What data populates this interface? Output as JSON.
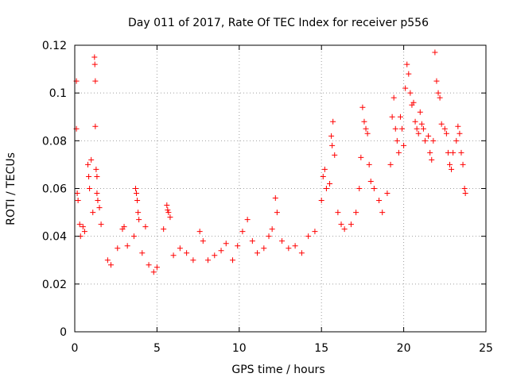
{
  "chart_data": {
    "type": "scatter",
    "title": "Day 011 of 2017, Rate Of TEC Index for receiver p556",
    "xlabel": "GPS time / hours",
    "ylabel": "ROTI / TECUs",
    "xlim": [
      0,
      25
    ],
    "ylim": [
      0,
      0.12
    ],
    "x_ticks": [
      0,
      5,
      10,
      15,
      20,
      25
    ],
    "y_ticks": [
      0,
      0.02,
      0.04,
      0.06,
      0.08,
      0.1,
      0.12
    ],
    "x_tick_labels": [
      "0",
      "5",
      "10",
      "15",
      "20",
      "25"
    ],
    "y_tick_labels": [
      "0",
      "0.02",
      "0.04",
      "0.06",
      "0.08",
      "0.1",
      "0.12"
    ],
    "grid": true,
    "marker": "plus",
    "color": "#ff0000",
    "series": [
      {
        "points": [
          [
            0.1,
            0.105
          ],
          [
            0.1,
            0.085
          ],
          [
            0.15,
            0.058
          ],
          [
            0.2,
            0.055
          ],
          [
            0.3,
            0.045
          ],
          [
            0.35,
            0.04
          ],
          [
            0.5,
            0.044
          ],
          [
            0.6,
            0.042
          ],
          [
            0.8,
            0.07
          ],
          [
            0.85,
            0.065
          ],
          [
            0.9,
            0.06
          ],
          [
            1.0,
            0.072
          ],
          [
            1.1,
            0.05
          ],
          [
            1.2,
            0.115
          ],
          [
            1.22,
            0.112
          ],
          [
            1.25,
            0.105
          ],
          [
            1.25,
            0.086
          ],
          [
            1.3,
            0.068
          ],
          [
            1.35,
            0.065
          ],
          [
            1.35,
            0.058
          ],
          [
            1.4,
            0.055
          ],
          [
            1.5,
            0.052
          ],
          [
            1.6,
            0.045
          ],
          [
            2.0,
            0.03
          ],
          [
            2.2,
            0.028
          ],
          [
            2.6,
            0.035
          ],
          [
            2.9,
            0.043
          ],
          [
            3.0,
            0.044
          ],
          [
            3.2,
            0.036
          ],
          [
            3.6,
            0.04
          ],
          [
            3.7,
            0.06
          ],
          [
            3.75,
            0.058
          ],
          [
            3.8,
            0.055
          ],
          [
            3.85,
            0.05
          ],
          [
            3.9,
            0.047
          ],
          [
            4.1,
            0.033
          ],
          [
            4.3,
            0.044
          ],
          [
            4.5,
            0.028
          ],
          [
            4.8,
            0.025
          ],
          [
            5.0,
            0.027
          ],
          [
            5.4,
            0.043
          ],
          [
            5.6,
            0.053
          ],
          [
            5.65,
            0.051
          ],
          [
            5.7,
            0.05
          ],
          [
            5.8,
            0.048
          ],
          [
            6.0,
            0.032
          ],
          [
            6.4,
            0.035
          ],
          [
            6.8,
            0.033
          ],
          [
            7.2,
            0.03
          ],
          [
            7.6,
            0.042
          ],
          [
            7.8,
            0.038
          ],
          [
            8.1,
            0.03
          ],
          [
            8.5,
            0.032
          ],
          [
            8.9,
            0.034
          ],
          [
            9.2,
            0.037
          ],
          [
            9.6,
            0.03
          ],
          [
            9.9,
            0.036
          ],
          [
            10.2,
            0.042
          ],
          [
            10.5,
            0.047
          ],
          [
            10.8,
            0.038
          ],
          [
            11.1,
            0.033
          ],
          [
            11.5,
            0.035
          ],
          [
            11.8,
            0.04
          ],
          [
            12.0,
            0.043
          ],
          [
            12.2,
            0.056
          ],
          [
            12.3,
            0.05
          ],
          [
            12.6,
            0.038
          ],
          [
            13.0,
            0.035
          ],
          [
            13.4,
            0.036
          ],
          [
            13.8,
            0.033
          ],
          [
            14.2,
            0.04
          ],
          [
            14.6,
            0.042
          ],
          [
            15.0,
            0.055
          ],
          [
            15.1,
            0.065
          ],
          [
            15.2,
            0.068
          ],
          [
            15.3,
            0.06
          ],
          [
            15.5,
            0.062
          ],
          [
            15.6,
            0.082
          ],
          [
            15.65,
            0.078
          ],
          [
            15.7,
            0.088
          ],
          [
            15.8,
            0.074
          ],
          [
            16.0,
            0.05
          ],
          [
            16.2,
            0.045
          ],
          [
            16.4,
            0.043
          ],
          [
            16.8,
            0.045
          ],
          [
            17.1,
            0.05
          ],
          [
            17.3,
            0.06
          ],
          [
            17.4,
            0.073
          ],
          [
            17.5,
            0.094
          ],
          [
            17.6,
            0.088
          ],
          [
            17.7,
            0.085
          ],
          [
            17.8,
            0.083
          ],
          [
            17.9,
            0.07
          ],
          [
            18.0,
            0.063
          ],
          [
            18.2,
            0.06
          ],
          [
            18.5,
            0.055
          ],
          [
            18.7,
            0.05
          ],
          [
            19.0,
            0.058
          ],
          [
            19.2,
            0.07
          ],
          [
            19.3,
            0.09
          ],
          [
            19.4,
            0.098
          ],
          [
            19.5,
            0.085
          ],
          [
            19.6,
            0.08
          ],
          [
            19.7,
            0.075
          ],
          [
            19.8,
            0.09
          ],
          [
            19.9,
            0.085
          ],
          [
            20.0,
            0.078
          ],
          [
            20.1,
            0.102
          ],
          [
            20.2,
            0.112
          ],
          [
            20.3,
            0.108
          ],
          [
            20.4,
            0.1
          ],
          [
            20.5,
            0.095
          ],
          [
            20.6,
            0.096
          ],
          [
            20.7,
            0.088
          ],
          [
            20.8,
            0.085
          ],
          [
            20.9,
            0.083
          ],
          [
            21.0,
            0.092
          ],
          [
            21.1,
            0.087
          ],
          [
            21.2,
            0.085
          ],
          [
            21.3,
            0.08
          ],
          [
            21.5,
            0.082
          ],
          [
            21.6,
            0.075
          ],
          [
            21.7,
            0.072
          ],
          [
            21.8,
            0.08
          ],
          [
            21.9,
            0.117
          ],
          [
            22.0,
            0.105
          ],
          [
            22.1,
            0.1
          ],
          [
            22.2,
            0.098
          ],
          [
            22.3,
            0.087
          ],
          [
            22.5,
            0.085
          ],
          [
            22.6,
            0.083
          ],
          [
            22.7,
            0.075
          ],
          [
            22.8,
            0.07
          ],
          [
            22.9,
            0.068
          ],
          [
            23.0,
            0.075
          ],
          [
            23.2,
            0.08
          ],
          [
            23.3,
            0.086
          ],
          [
            23.4,
            0.083
          ],
          [
            23.5,
            0.075
          ],
          [
            23.6,
            0.07
          ],
          [
            23.7,
            0.06
          ],
          [
            23.75,
            0.058
          ]
        ]
      }
    ]
  }
}
